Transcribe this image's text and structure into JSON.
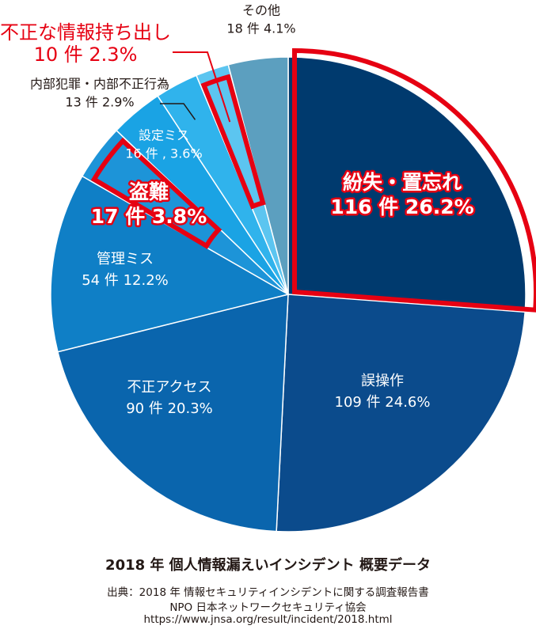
{
  "chart_data": {
    "type": "pie",
    "title": "2018 年 個人情報漏えいインシデント 概要データ",
    "slices": [
      {
        "category": "紛失・置忘れ",
        "text": "116 件 26.2%",
        "count": 116,
        "percent": 26.2,
        "color": "#003a6e",
        "highlight": true
      },
      {
        "category": "誤操作",
        "text": "109 件 24.6%",
        "count": 109,
        "percent": 24.6,
        "color": "#0b4b8c",
        "highlight": false
      },
      {
        "category": "不正アクセス",
        "text": "90 件 20.3%",
        "count": 90,
        "percent": 20.3,
        "color": "#0a65ad",
        "highlight": false
      },
      {
        "category": "管理ミス",
        "text": "54 件 12.2%",
        "count": 54,
        "percent": 12.2,
        "color": "#0f7fc6",
        "highlight": false
      },
      {
        "category": "盗難",
        "text": "17 件 3.8%",
        "count": 17,
        "percent": 3.8,
        "color": "#1d94d8",
        "highlight": true
      },
      {
        "category": "設定ミス",
        "text": "16 件 , 3.6%",
        "count": 16,
        "percent": 3.6,
        "color": "#1aa3e4",
        "highlight": false
      },
      {
        "category": "内部犯罪・内部不正行為",
        "text": "13 件 2.9%",
        "count": 13,
        "percent": 2.9,
        "color": "#30b3ec",
        "highlight": false
      },
      {
        "category": "不正な情報持ち出し",
        "text": "10 件 2.3%",
        "count": 10,
        "percent": 2.3,
        "color": "#5cc5f0",
        "highlight": true
      },
      {
        "category": "その他",
        "text": "18 件 4.1%",
        "count": 18,
        "percent": 4.1,
        "color": "#5c9fbf",
        "highlight": false
      }
    ],
    "highlight_color": "#e60012"
  },
  "source": {
    "line1": "出典：2018 年 情報セキュリティインシデントに関する調査報告書",
    "line2": "NPO 日本ネットワークセキュリティ協会",
    "line3": "https://www.jnsa.org/result/incident/2018.html"
  }
}
